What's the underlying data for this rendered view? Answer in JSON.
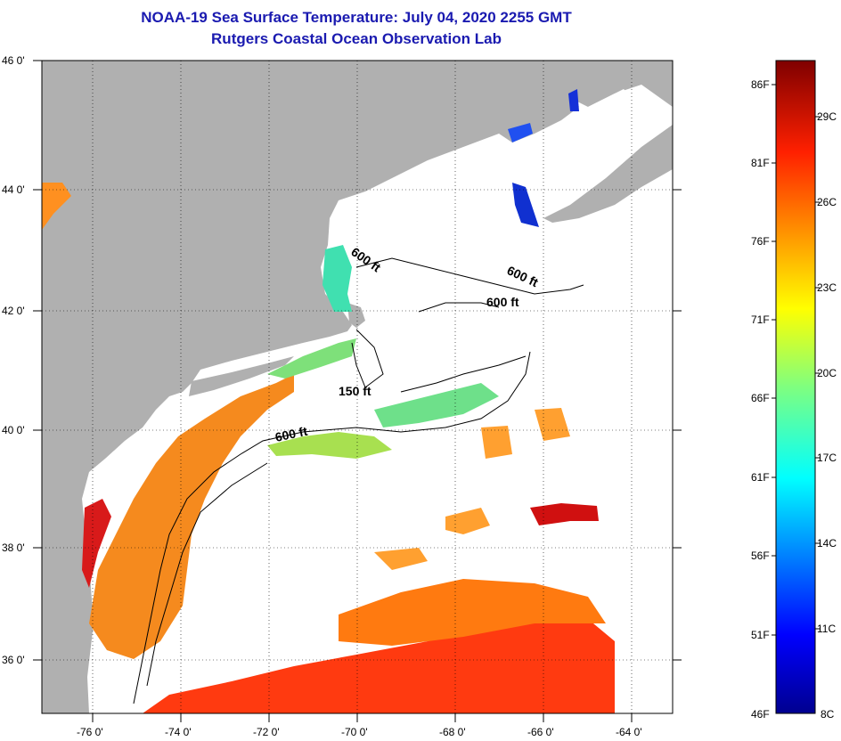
{
  "title": {
    "line1": "NOAA-19 Sea Surface Temperature:  July 04, 2020 2255 GMT",
    "line2": "Rutgers Coastal Ocean Observation Lab"
  },
  "map": {
    "lat_labels": [
      "46 0'",
      "44 0'",
      "42 0'",
      "40 0'",
      "38 0'",
      "36 0'"
    ],
    "lon_labels": [
      "-76 0'",
      "-74 0'",
      "-72 0'",
      "-70 0'",
      "-68 0'",
      "-66 0'",
      "-64 0'"
    ],
    "contour_labels": [
      "600 ft",
      "600 ft",
      "600 ft",
      "150 ft",
      "600 ft"
    ]
  },
  "colorbar": {
    "fahrenheit": [
      "86F",
      "81F",
      "76F",
      "71F",
      "66F",
      "61F",
      "56F",
      "51F",
      "46F"
    ],
    "celsius": [
      "29C",
      "26C",
      "23C",
      "20C",
      "17C",
      "14C",
      "11C",
      "8C"
    ]
  },
  "colors": {
    "land": "#b0b0b0",
    "title": "#1a1ab0"
  }
}
